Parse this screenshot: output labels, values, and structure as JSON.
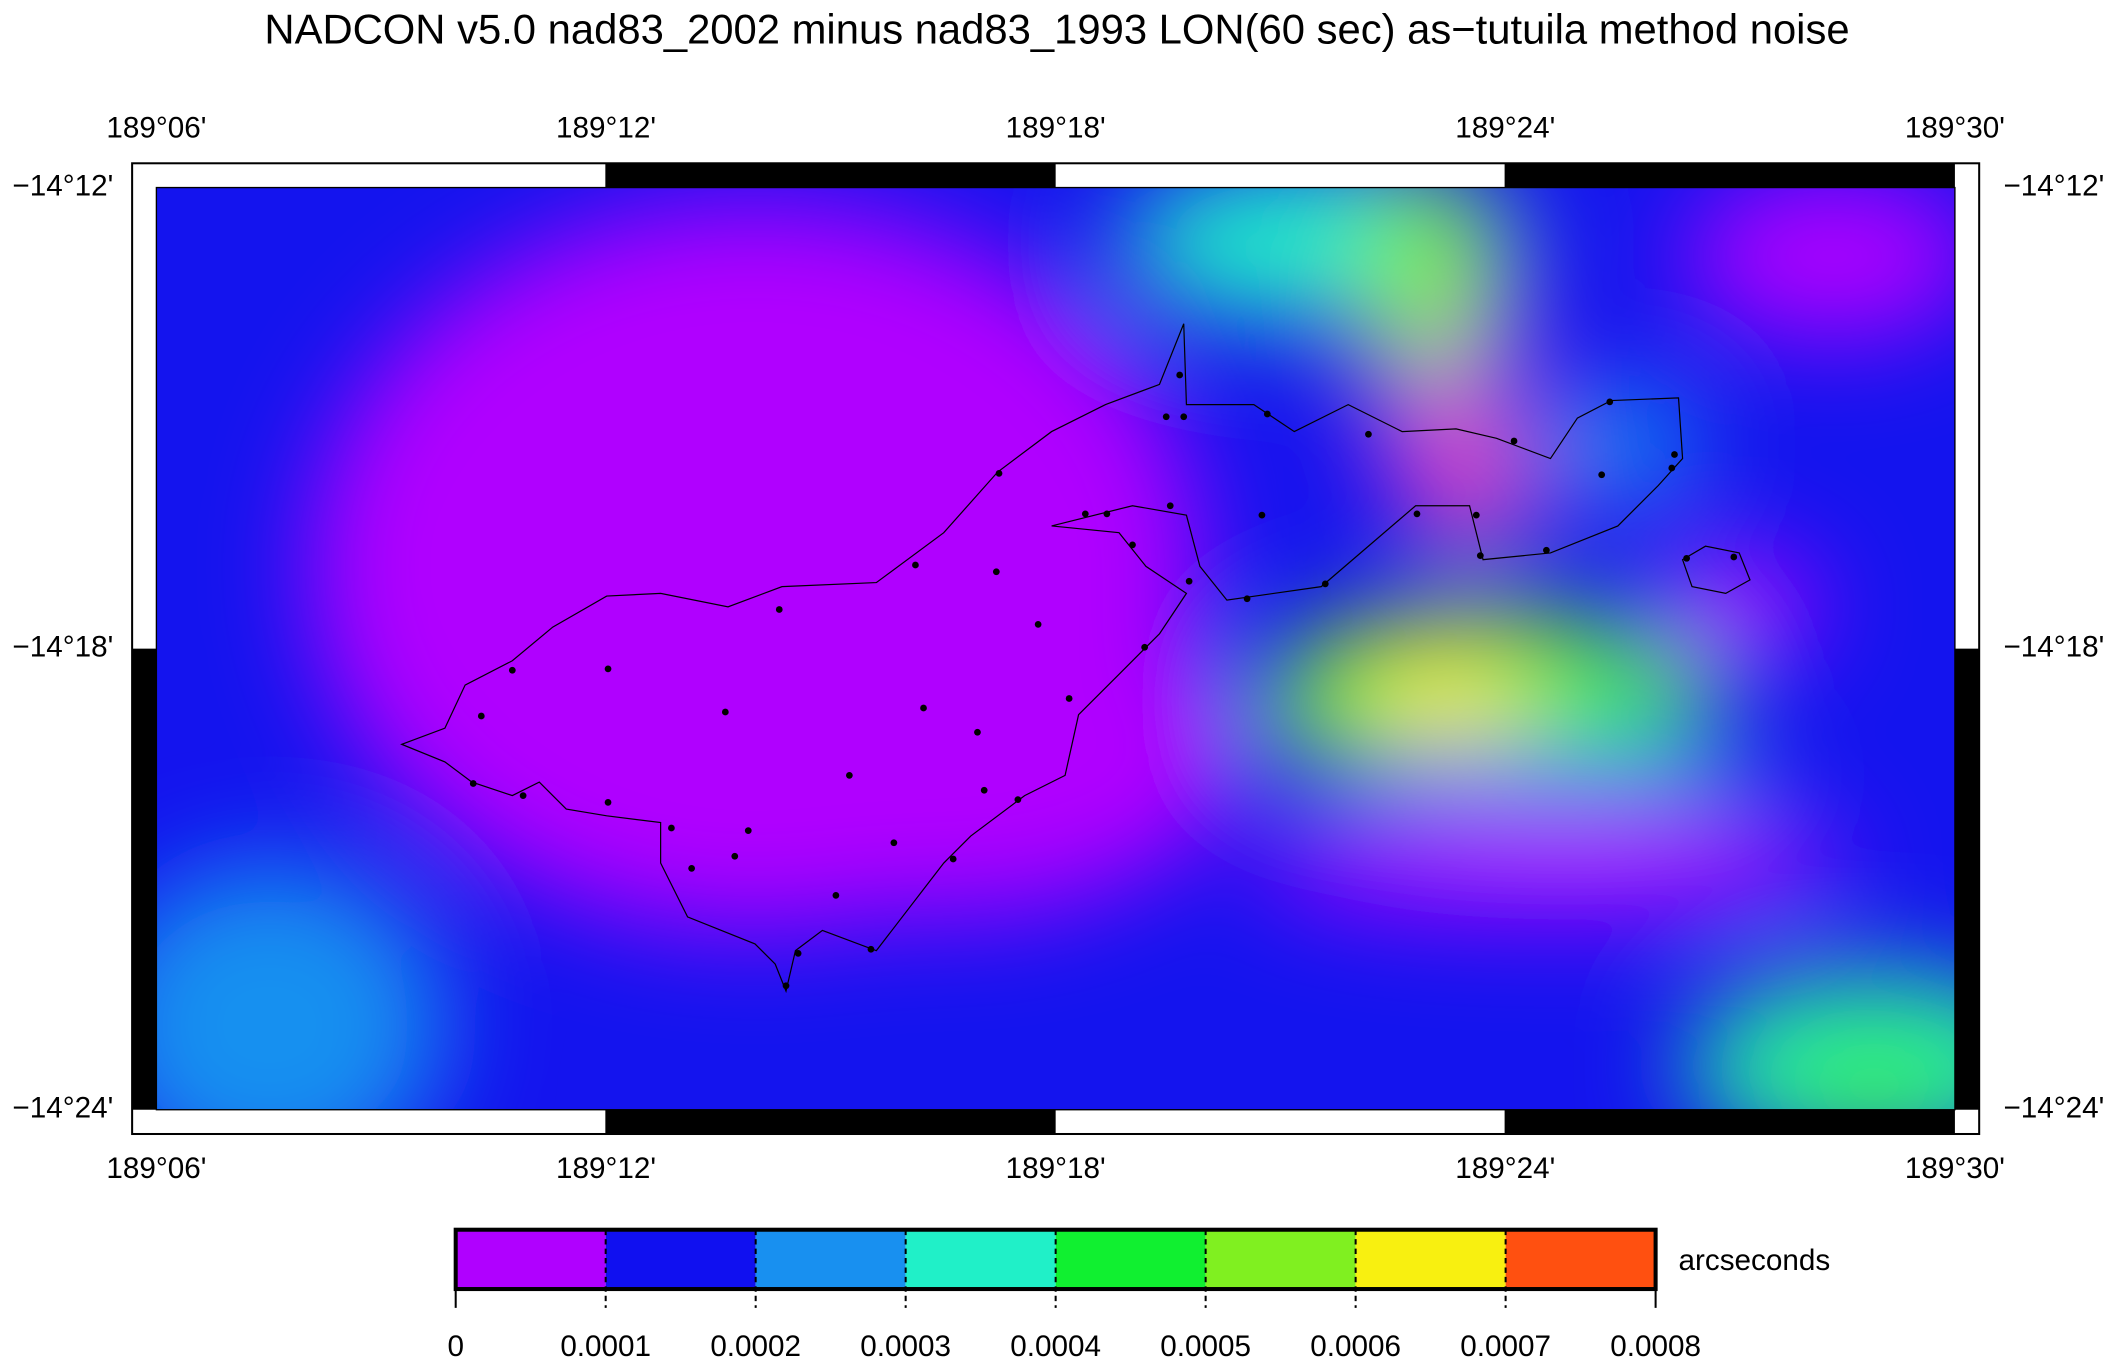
{
  "title": "NADCON v5.0 nad83_2002 minus nad83_1993 LON(60 sec) as−tutuila method noise",
  "map": {
    "lon_ticks": [
      "189°06'",
      "189°12'",
      "189°18'",
      "189°24'",
      "189°30'"
    ],
    "lat_ticks": [
      "−14°12'",
      "−14°18'",
      "−14°24'"
    ]
  },
  "colorbar": {
    "unit": "arcseconds",
    "ticks": [
      0,
      0.0001,
      0.0002,
      0.0003,
      0.0004,
      0.0005,
      0.0006,
      0.0007,
      0.0008
    ],
    "colors": [
      "#b000ff",
      "#1010f0",
      "#1890f0",
      "#20f0c8",
      "#10f030",
      "#80f020",
      "#f8f010",
      "#ff5010"
    ]
  }
}
